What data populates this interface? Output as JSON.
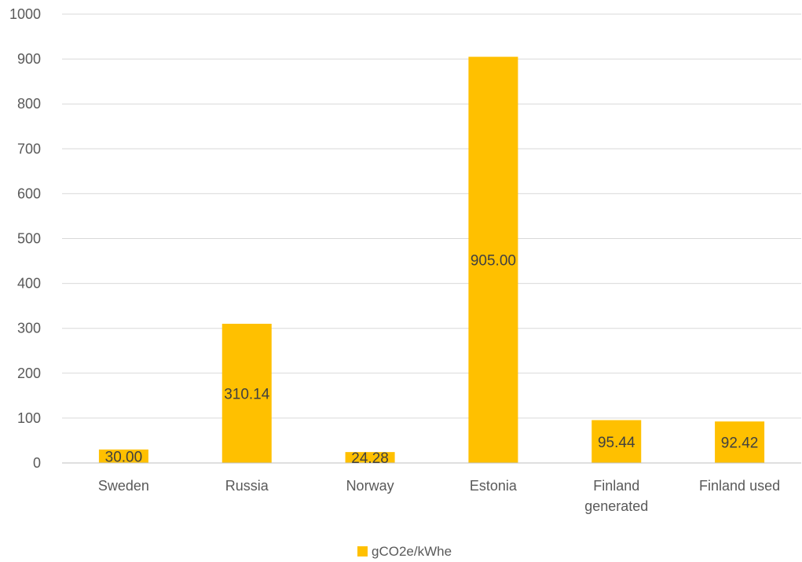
{
  "chart_data": {
    "type": "bar",
    "title": "",
    "xlabel": "",
    "ylabel": "",
    "categories": [
      [
        "Sweden"
      ],
      [
        "Russia"
      ],
      [
        "Norway"
      ],
      [
        "Estonia"
      ],
      [
        "Finland",
        "generated"
      ],
      [
        "Finland used"
      ]
    ],
    "series": [
      {
        "name": "gCO2e/kWhe",
        "values": [
          30.0,
          310.14,
          24.28,
          905.0,
          95.44,
          92.42
        ],
        "data_labels": [
          "30.00",
          "310.14",
          "24.28",
          "905.00",
          "95.44",
          "92.42"
        ],
        "color": "#FFC000"
      }
    ],
    "ylim": [
      0,
      1000
    ],
    "yticks": [
      "0",
      "100",
      "200",
      "300",
      "400",
      "500",
      "600",
      "700",
      "800",
      "900",
      "1000"
    ],
    "grid": true,
    "legend_position": "bottom"
  }
}
